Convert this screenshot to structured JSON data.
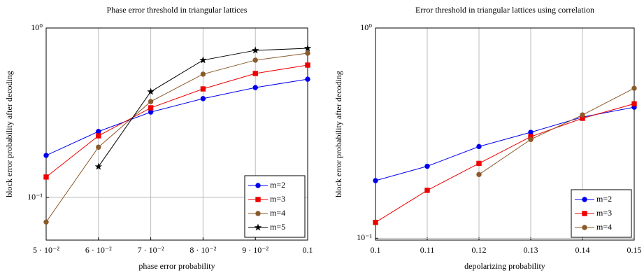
{
  "chart_data": [
    {
      "type": "line",
      "title": "Phase error threshold in triangular lattices",
      "x_label": "phase error probability",
      "y_label": "block error probability after decoding",
      "log_y": true,
      "grid": true,
      "legend": "lower right",
      "xlim": [
        0.05,
        0.1
      ],
      "ylim": [
        0.056,
        1
      ],
      "xticks": [
        {
          "value": 0.05,
          "label": "5 · 10⁻²"
        },
        {
          "value": 0.06,
          "label": "6 · 10⁻²"
        },
        {
          "value": 0.07,
          "label": "7 · 10⁻²"
        },
        {
          "value": 0.08,
          "label": "8 · 10⁻²"
        },
        {
          "value": 0.09,
          "label": "9 · 10⁻²"
        },
        {
          "value": 0.1,
          "label": "0.1"
        }
      ],
      "yticks": [
        {
          "value": 0.1,
          "label": "10⁻¹"
        },
        {
          "value": 1,
          "label": "10⁰"
        }
      ],
      "x": [
        0.05,
        0.06,
        0.07,
        0.08,
        0.09,
        0.1
      ],
      "series": [
        {
          "name": "m=2",
          "color": "#0000ee",
          "marker": "circle",
          "values": [
            0.177,
            0.245,
            0.319,
            0.383,
            0.445,
            0.499
          ]
        },
        {
          "name": "m=3",
          "color": "#ee0000",
          "marker": "square",
          "values": [
            0.132,
            0.231,
            0.338,
            0.437,
            0.539,
            0.604
          ]
        },
        {
          "name": "m=4",
          "color": "#8b5a2b",
          "marker": "circle",
          "values": [
            0.0716,
            0.198,
            0.368,
            0.534,
            0.646,
            0.71
          ]
        },
        {
          "name": "m=5",
          "color": "#000000",
          "marker": "star",
          "values": [
            null,
            0.152,
            0.421,
            0.646,
            0.738,
            0.759
          ]
        }
      ]
    },
    {
      "type": "line",
      "title": "Error threshold in triangular lattices using correlation",
      "x_label": "depolarizing probability",
      "y_label": "block error probability after decoding",
      "log_y": true,
      "grid": true,
      "legend": "lower right",
      "xlim": [
        0.1,
        0.15
      ],
      "ylim": [
        0.098,
        1
      ],
      "xticks": [
        0.1,
        0.11,
        0.12,
        0.13,
        0.14,
        0.15
      ],
      "yticks": [
        {
          "value": 0.1,
          "label": "10⁻¹"
        },
        {
          "value": 1,
          "label": "10⁰"
        }
      ],
      "x": [
        0.1,
        0.11,
        0.12,
        0.13,
        0.14,
        0.15
      ],
      "series": [
        {
          "name": "m=2",
          "color": "#0000ee",
          "marker": "circle",
          "values": [
            0.188,
            0.22,
            0.273,
            0.319,
            0.377,
            0.42
          ]
        },
        {
          "name": "m=3",
          "color": "#ee0000",
          "marker": "square",
          "values": [
            0.119,
            0.169,
            0.227,
            0.304,
            0.372,
            0.436
          ]
        },
        {
          "name": "m=4",
          "color": "#8b5a2b",
          "marker": "circle",
          "values": [
            null,
            null,
            0.201,
            0.295,
            0.386,
            0.517
          ]
        }
      ]
    }
  ]
}
